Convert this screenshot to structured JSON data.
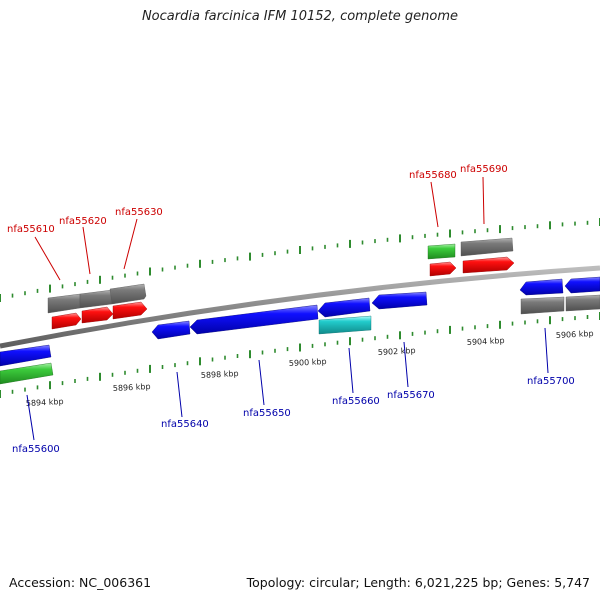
{
  "title": "Nocardia farcinica IFM 10152, complete genome",
  "footer": {
    "accession": "Accession: NC_006361",
    "summary": "Topology: circular; Length: 6,021,225 bp; Genes: 5,747"
  },
  "colors": {
    "backbone": "#8a8a8a",
    "cds_forward": "#ff0000",
    "cds_reverse": "#0000ff",
    "gene_track": "#707070",
    "rna": "#33cc33",
    "other_feature": "#22cccc",
    "tick": "#2e8b2e",
    "forward_label": "#cc0000",
    "reverse_label": "#0000aa"
  },
  "scale_labels": [
    "5894 kbp",
    "5896 kbp",
    "5898 kbp",
    "5900 kbp",
    "5902 kbp",
    "5904 kbp",
    "5906 kbp"
  ],
  "forward_labels": [
    "nfa55610",
    "nfa55620",
    "nfa55630",
    "nfa55680",
    "nfa55690"
  ],
  "reverse_labels": [
    "nfa55600",
    "nfa55640",
    "nfa55650",
    "nfa55660",
    "nfa55670",
    "nfa55700"
  ]
}
